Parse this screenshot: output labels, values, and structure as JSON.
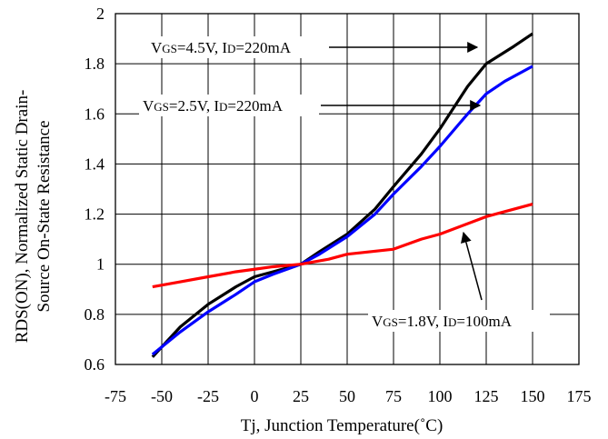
{
  "chart_data": {
    "type": "line",
    "title": "",
    "xlabel": "Tj, Junction Temperature(˚C)",
    "ylabel_line1": "RDS(ON), Normalized Static Drain-",
    "ylabel_line2": "Source On-State Resistance",
    "xlim": [
      -75,
      175
    ],
    "ylim": [
      0.6,
      2.0
    ],
    "x_ticks": [
      -75,
      -50,
      -25,
      0,
      25,
      50,
      75,
      100,
      125,
      150,
      175
    ],
    "x_tick_labels": [
      "-75",
      "-50",
      "-25",
      "0",
      "25",
      "50",
      "75",
      "100",
      "125",
      "150",
      "175"
    ],
    "y_ticks": [
      0.6,
      0.8,
      1.0,
      1.2,
      1.4,
      1.6,
      1.8,
      2.0
    ],
    "y_tick_labels": [
      "0.6",
      "0.8",
      "1",
      "1.2",
      "1.4",
      "1.6",
      "1.8",
      "2"
    ],
    "grid": true,
    "series": [
      {
        "label": "VGS=4.5V, ID=220mA",
        "color": "#000000",
        "points": [
          [
            -55,
            0.63
          ],
          [
            -40,
            0.75
          ],
          [
            -25,
            0.84
          ],
          [
            -10,
            0.91
          ],
          [
            0,
            0.95
          ],
          [
            10,
            0.97
          ],
          [
            25,
            1.0
          ],
          [
            35,
            1.05
          ],
          [
            50,
            1.12
          ],
          [
            65,
            1.22
          ],
          [
            75,
            1.31
          ],
          [
            90,
            1.44
          ],
          [
            100,
            1.54
          ],
          [
            115,
            1.71
          ],
          [
            125,
            1.8
          ],
          [
            140,
            1.87
          ],
          [
            150,
            1.92
          ]
        ]
      },
      {
        "label": "VGS=2.5V, ID=220mA",
        "color": "#0000ff",
        "points": [
          [
            -55,
            0.64
          ],
          [
            -40,
            0.73
          ],
          [
            -25,
            0.81
          ],
          [
            -10,
            0.88
          ],
          [
            0,
            0.93
          ],
          [
            10,
            0.96
          ],
          [
            25,
            1.0
          ],
          [
            35,
            1.04
          ],
          [
            50,
            1.11
          ],
          [
            65,
            1.2
          ],
          [
            75,
            1.28
          ],
          [
            90,
            1.39
          ],
          [
            100,
            1.47
          ],
          [
            115,
            1.6
          ],
          [
            125,
            1.68
          ],
          [
            135,
            1.73
          ],
          [
            150,
            1.79
          ]
        ]
      },
      {
        "label": "VGS=1.8V, ID=100mA",
        "color": "#ff0000",
        "points": [
          [
            -55,
            0.91
          ],
          [
            -40,
            0.93
          ],
          [
            -25,
            0.95
          ],
          [
            -10,
            0.97
          ],
          [
            0,
            0.98
          ],
          [
            10,
            0.99
          ],
          [
            25,
            1.0
          ],
          [
            40,
            1.02
          ],
          [
            50,
            1.04
          ],
          [
            75,
            1.06
          ],
          [
            90,
            1.1
          ],
          [
            100,
            1.12
          ],
          [
            125,
            1.19
          ],
          [
            150,
            1.24
          ]
        ]
      }
    ],
    "annotations": [
      {
        "var": "V",
        "var_sub": "GS",
        "mid": "=4.5V, I",
        "cur_sub": "D",
        "tail": "=220mA"
      },
      {
        "var": "V",
        "var_sub": "GS",
        "mid": "=2.5V, I",
        "cur_sub": "D",
        "tail": "=220mA"
      },
      {
        "var": "V",
        "var_sub": "GS",
        "mid": "=1.8V, I",
        "cur_sub": "D",
        "tail": "=100mA"
      }
    ]
  }
}
